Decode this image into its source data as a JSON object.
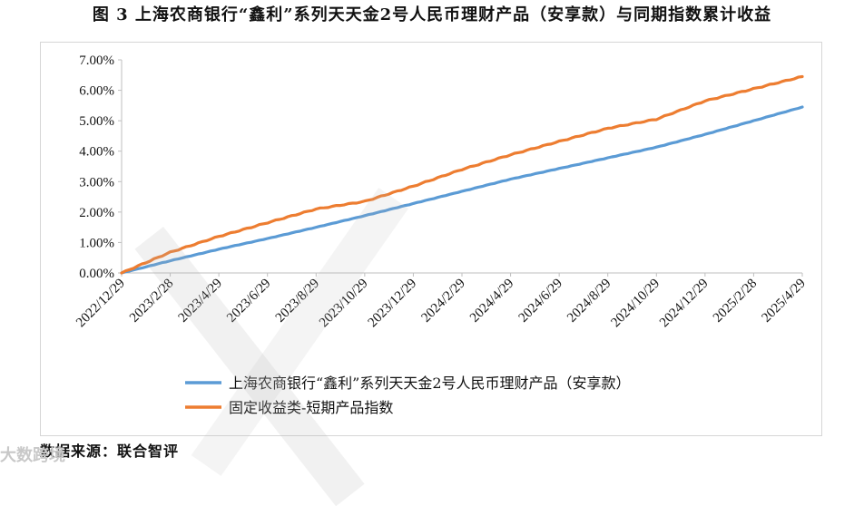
{
  "figure": {
    "title": "图 3 上海农商银行“鑫利”系列天天金2号人民币理财产品（安享款）与同期指数累计收益",
    "source": "数据来源：联合智评",
    "watermark": "大数跨境"
  },
  "colors": {
    "series1": "#5b9bd5",
    "series2": "#ed7d31",
    "axis": "#bfbfbf"
  },
  "chart_data": {
    "type": "line",
    "title": "图 3 上海农商银行“鑫利”系列天天金2号人民币理财产品（安享款）与同期指数累计收益",
    "xlabel": "",
    "ylabel": "",
    "x": [
      "2022/12/29",
      "2023/2/28",
      "2023/4/29",
      "2023/6/29",
      "2023/8/29",
      "2023/10/29",
      "2023/12/29",
      "2024/2/29",
      "2024/4/29",
      "2024/6/29",
      "2024/8/29",
      "2024/10/29",
      "2024/12/29",
      "2025/2/28",
      "2025/4/29"
    ],
    "x_tick_labels": [
      "2022/12/29",
      "2023/2/28",
      "2023/4/29",
      "2023/6/29",
      "2023/8/29",
      "2023/10/29",
      "2023/12/29",
      "2024/2/29",
      "2024/4/29",
      "2024/6/29",
      "2024/8/29",
      "2024/10/29",
      "2024/12/29",
      "2025/2/28",
      "2025/4/29"
    ],
    "y_tick_labels": [
      "0.00%",
      "1.00%",
      "2.00%",
      "3.00%",
      "4.00%",
      "5.00%",
      "6.00%",
      "7.00%"
    ],
    "ylim": [
      0,
      7
    ],
    "y_unit": "%",
    "grid": false,
    "legend_position": "bottom",
    "series": [
      {
        "name": "上海农商银行“鑫利”系列天天金2号人民币理财产品（安享款）",
        "values": [
          0.0,
          0.4,
          0.78,
          1.13,
          1.5,
          1.88,
          2.28,
          2.68,
          3.08,
          3.43,
          3.78,
          4.13,
          4.55,
          5.0,
          5.45
        ]
      },
      {
        "name": "固定收益类-短期产品指数",
        "values": [
          0.0,
          0.68,
          1.2,
          1.65,
          2.1,
          2.35,
          2.85,
          3.4,
          3.88,
          4.32,
          4.75,
          5.05,
          5.65,
          6.05,
          6.45
        ]
      }
    ]
  }
}
